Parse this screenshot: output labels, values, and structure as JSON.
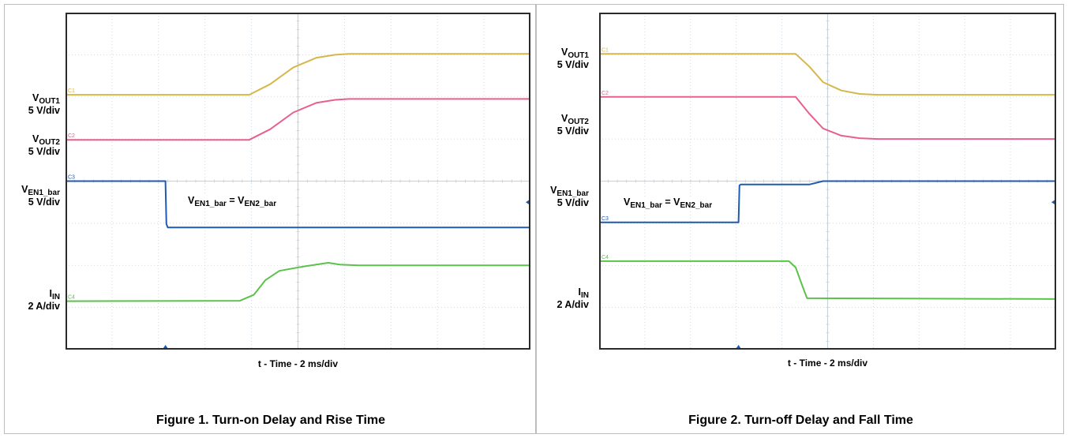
{
  "colors": {
    "c1": "#d4b84a",
    "c2": "#e8608c",
    "c3": "#1f5ab3",
    "c4": "#5bc24a",
    "grid": "#c6d0d8",
    "frame": "#2b2b2b"
  },
  "chart_data": [
    {
      "type": "line",
      "caption": "Figure 1. Turn-on Delay and Rise Time",
      "xlabel": "t - Time - 2 ms/div",
      "xlim": [
        0,
        10
      ],
      "ylim": [
        0,
        8
      ],
      "grid": true,
      "annotation": {
        "left": "V",
        "left_sub": "EN1_bar",
        "mid": " = V",
        "right_sub": "EN2_bar"
      },
      "labels": [
        {
          "main": "V",
          "sub": "OUT1",
          "scale": "5 V/div"
        },
        {
          "main": "V",
          "sub": "OUT2",
          "scale": "5 V/div"
        },
        {
          "main": "V",
          "sub": "EN1_bar",
          "scale": "5 V/div"
        },
        {
          "main": "I",
          "sub": "IN",
          "scale": "2 A/div"
        }
      ],
      "channel_tags": [
        "C1",
        "C2",
        "C3",
        "C4"
      ],
      "series": [
        {
          "tag": "C1",
          "color": "#d4b84a",
          "x": [
            0,
            3.95,
            4.4,
            4.9,
            5.4,
            5.8,
            6.1,
            10
          ],
          "y": [
            6.05,
            6.05,
            6.3,
            6.7,
            6.93,
            7.0,
            7.02,
            7.02
          ]
        },
        {
          "tag": "C2",
          "color": "#e8608c",
          "x": [
            0,
            3.95,
            4.4,
            4.9,
            5.4,
            5.8,
            6.1,
            10
          ],
          "y": [
            4.98,
            4.98,
            5.23,
            5.63,
            5.86,
            5.93,
            5.95,
            5.95
          ]
        },
        {
          "tag": "C3",
          "color": "#1f5ab3",
          "x": [
            0,
            2.15,
            2.17,
            2.2,
            10
          ],
          "y": [
            4.0,
            4.0,
            2.98,
            2.9,
            2.9
          ]
        },
        {
          "tag": "C4",
          "color": "#5bc24a",
          "x": [
            0,
            3.75,
            4.05,
            4.3,
            4.6,
            5.1,
            5.65,
            5.9,
            6.3,
            10
          ],
          "y": [
            1.15,
            1.16,
            1.3,
            1.65,
            1.87,
            1.97,
            2.06,
            2.02,
            2.0,
            2.0
          ]
        }
      ],
      "trigger_x": 2.15
    },
    {
      "type": "line",
      "caption": "Figure 2. Turn-off Delay and Fall Time",
      "xlabel": "t - Time - 2 ms/div",
      "xlim": [
        0,
        10
      ],
      "ylim": [
        0,
        8
      ],
      "grid": true,
      "annotation": {
        "left": "V",
        "left_sub": "EN1_bar",
        "mid": " = V",
        "right_sub": "EN2_bar"
      },
      "labels": [
        {
          "main": "V",
          "sub": "OUT1",
          "scale": "5 V/div"
        },
        {
          "main": "V",
          "sub": "OUT2",
          "scale": "5 V/div"
        },
        {
          "main": "V",
          "sub": "EN1_bar",
          "scale": "5 V/div"
        },
        {
          "main": "I",
          "sub": "IN",
          "scale": "2 A/div"
        }
      ],
      "channel_tags": [
        "C1",
        "C2",
        "C3",
        "C4"
      ],
      "series": [
        {
          "tag": "C1",
          "color": "#d4b84a",
          "x": [
            0,
            4.3,
            4.6,
            4.9,
            5.3,
            5.7,
            6.1,
            10
          ],
          "y": [
            7.02,
            7.02,
            6.72,
            6.35,
            6.15,
            6.07,
            6.05,
            6.05
          ]
        },
        {
          "tag": "C2",
          "color": "#e8608c",
          "x": [
            0,
            4.3,
            4.6,
            4.9,
            5.3,
            5.7,
            6.1,
            10
          ],
          "y": [
            6.0,
            6.0,
            5.6,
            5.25,
            5.08,
            5.02,
            5.0,
            5.0
          ]
        },
        {
          "tag": "C3",
          "color": "#1f5ab3",
          "x": [
            0,
            3.05,
            3.07,
            3.1,
            4.6,
            4.9,
            10
          ],
          "y": [
            3.02,
            3.02,
            3.9,
            3.92,
            3.92,
            4.0,
            4.0
          ]
        },
        {
          "tag": "C4",
          "color": "#5bc24a",
          "x": [
            0,
            4.15,
            4.3,
            4.45,
            4.55,
            10
          ],
          "y": [
            2.1,
            2.1,
            1.95,
            1.5,
            1.22,
            1.2
          ]
        }
      ],
      "trigger_x": 3.05
    }
  ]
}
